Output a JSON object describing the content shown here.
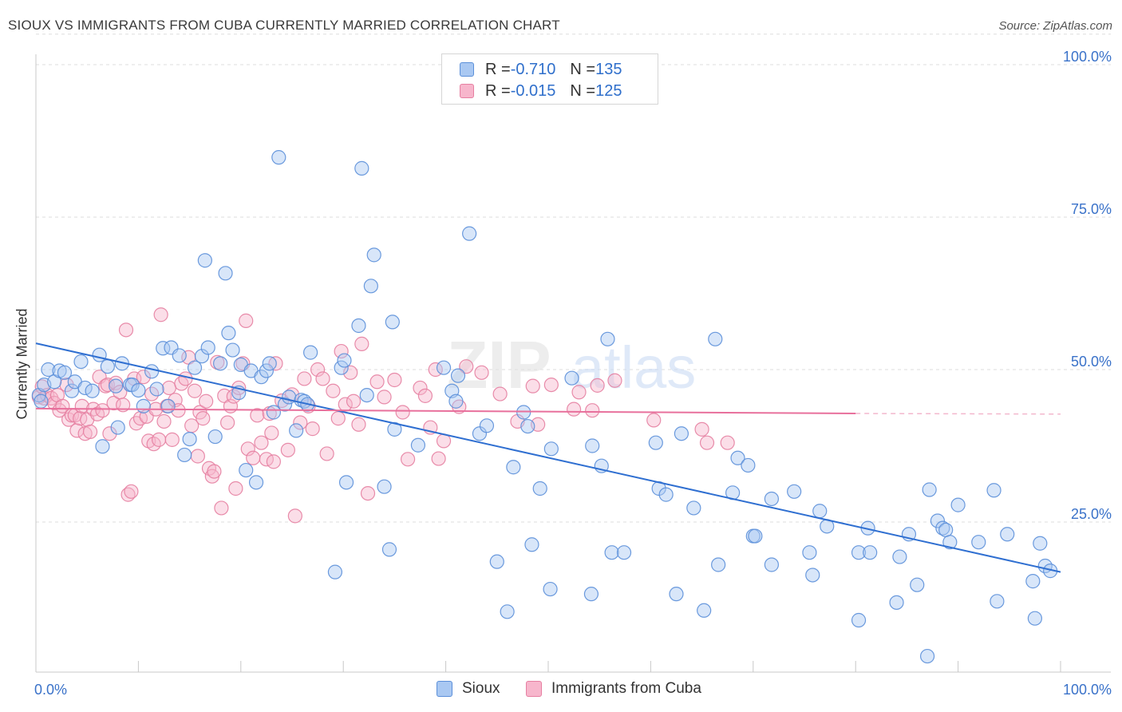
{
  "title": "SIOUX VS IMMIGRANTS FROM CUBA CURRENTLY MARRIED CORRELATION CHART",
  "source": "Source: ZipAtlas.com",
  "watermark": {
    "zip": "ZIP",
    "atlas": "atlas"
  },
  "legend_top": {
    "rows": [
      {
        "r_label": "R = ",
        "r_value": "-0.710",
        "n_label": "N = ",
        "n_value": "135"
      },
      {
        "r_label": "R = ",
        "r_value": "-0.015",
        "n_label": "N = ",
        "n_value": "125"
      }
    ]
  },
  "legend_bottom": {
    "series1": "Sioux",
    "series2": "Immigrants from Cuba"
  },
  "colors": {
    "blue_fill": "#a9c8f2",
    "blue_stroke": "#5b8fd9",
    "blue_line": "#2f6fd1",
    "pink_fill": "#f7b6cc",
    "pink_stroke": "#e67fa1",
    "pink_line": "#e8709c",
    "tick_text": "#3a72c9",
    "grid": "#dedede"
  },
  "chart_data": {
    "type": "scatter",
    "title": "SIOUX VS IMMIGRANTS FROM CUBA CURRENTLY MARRIED CORRELATION CHART",
    "xlabel": "",
    "ylabel": "Currently Married",
    "xlim": [
      0,
      100
    ],
    "ylim": [
      0,
      105
    ],
    "x_tick_labels": [
      "0.0%",
      "100.0%"
    ],
    "y_tick_labels": [
      "25.0%",
      "50.0%",
      "75.0%",
      "100.0%"
    ],
    "y_ticks": [
      25,
      50,
      75,
      100
    ],
    "grid": true,
    "legend_placement": "top-center",
    "series": [
      {
        "name": "Sioux",
        "r": -0.71,
        "n": 135,
        "trend": {
          "x": [
            0,
            100
          ],
          "y": [
            54.3,
            16.8
          ]
        },
        "points": [
          [
            0.3,
            45.8
          ],
          [
            0.5,
            44.8
          ],
          [
            0.8,
            47.5
          ],
          [
            1.2,
            50
          ],
          [
            1.8,
            48
          ],
          [
            2.3,
            49.8
          ],
          [
            2.8,
            49.5
          ],
          [
            3.5,
            46.5
          ],
          [
            3.8,
            48
          ],
          [
            4.4,
            51.3
          ],
          [
            4.8,
            47
          ],
          [
            5.5,
            46.5
          ],
          [
            6.2,
            52.4
          ],
          [
            6.5,
            37.4
          ],
          [
            7,
            50.5
          ],
          [
            7.8,
            47.3
          ],
          [
            8,
            40.5
          ],
          [
            8.4,
            51
          ],
          [
            9.2,
            47.5
          ],
          [
            9.4,
            47.5
          ],
          [
            10,
            46.6
          ],
          [
            10.5,
            44
          ],
          [
            11.3,
            49.7
          ],
          [
            11.8,
            46.8
          ],
          [
            12.4,
            53.5
          ],
          [
            12.9,
            44
          ],
          [
            13.2,
            53.6
          ],
          [
            14,
            52.3
          ],
          [
            14.5,
            36
          ],
          [
            15,
            38.6
          ],
          [
            15.5,
            50.3
          ],
          [
            16.2,
            52.2
          ],
          [
            16.5,
            67.9
          ],
          [
            16.8,
            53.6
          ],
          [
            17.5,
            39
          ],
          [
            18,
            51
          ],
          [
            18.5,
            65.8
          ],
          [
            18.8,
            56
          ],
          [
            19.2,
            53.2
          ],
          [
            19.8,
            46.2
          ],
          [
            20,
            50.8
          ],
          [
            20.5,
            33.5
          ],
          [
            21,
            49.8
          ],
          [
            21.5,
            31.5
          ],
          [
            22,
            48.8
          ],
          [
            22.5,
            49.8
          ],
          [
            22.8,
            51
          ],
          [
            23.2,
            43
          ],
          [
            23.7,
            84.8
          ],
          [
            24.3,
            44.3
          ],
          [
            24.7,
            45.5
          ],
          [
            25.4,
            40
          ],
          [
            25.9,
            45
          ],
          [
            26.2,
            44.8
          ],
          [
            26.5,
            44.3
          ],
          [
            26.8,
            52.8
          ],
          [
            29.2,
            16.8
          ],
          [
            29.8,
            50.3
          ],
          [
            30.1,
            51.5
          ],
          [
            30.3,
            31.5
          ],
          [
            31.5,
            57.2
          ],
          [
            31.8,
            83
          ],
          [
            32.3,
            45.8
          ],
          [
            32.7,
            63.7
          ],
          [
            33,
            68.8
          ],
          [
            34,
            30.8
          ],
          [
            34.5,
            20.5
          ],
          [
            34.8,
            57.8
          ],
          [
            35,
            40.2
          ],
          [
            37.3,
            37.6
          ],
          [
            39.8,
            50.3
          ],
          [
            40.6,
            46.5
          ],
          [
            41,
            44.8
          ],
          [
            41.2,
            49
          ],
          [
            42.3,
            72.3
          ],
          [
            43.3,
            39.5
          ],
          [
            44,
            40.8
          ],
          [
            45,
            18.5
          ],
          [
            46,
            10.3
          ],
          [
            46.6,
            34
          ],
          [
            47.6,
            43
          ],
          [
            48,
            40.7
          ],
          [
            48.4,
            21.3
          ],
          [
            49.2,
            30.5
          ],
          [
            50.2,
            14
          ],
          [
            50.3,
            37
          ],
          [
            52.3,
            48.6
          ],
          [
            54.2,
            13.2
          ],
          [
            54.3,
            37.5
          ],
          [
            55.2,
            34.2
          ],
          [
            55.8,
            55
          ],
          [
            56.2,
            20
          ],
          [
            57.4,
            20
          ],
          [
            60.5,
            38
          ],
          [
            60.8,
            30.5
          ],
          [
            61.5,
            29.5
          ],
          [
            62.5,
            13.2
          ],
          [
            63,
            39.5
          ],
          [
            64.2,
            27.3
          ],
          [
            65.2,
            10.5
          ],
          [
            66.3,
            55
          ],
          [
            66.6,
            18
          ],
          [
            68,
            29.8
          ],
          [
            68.5,
            35.5
          ],
          [
            69.5,
            34.3
          ],
          [
            70,
            22.7
          ],
          [
            70.2,
            22.7
          ],
          [
            71.8,
            18
          ],
          [
            71.8,
            28.8
          ],
          [
            74,
            30
          ],
          [
            75.5,
            20
          ],
          [
            75.8,
            16.3
          ],
          [
            76.5,
            26.8
          ],
          [
            77.2,
            24.3
          ],
          [
            80.3,
            8.9
          ],
          [
            80.3,
            20
          ],
          [
            81.2,
            24
          ],
          [
            81.4,
            20
          ],
          [
            84,
            11.8
          ],
          [
            84.3,
            19.3
          ],
          [
            85.2,
            23
          ],
          [
            86,
            14.7
          ],
          [
            87,
            3
          ],
          [
            87.2,
            30.3
          ],
          [
            88,
            25.2
          ],
          [
            88.5,
            24
          ],
          [
            88.8,
            23.7
          ],
          [
            89.2,
            21.7
          ],
          [
            90,
            27.8
          ],
          [
            92,
            21.7
          ],
          [
            93.5,
            30.2
          ],
          [
            93.8,
            12
          ],
          [
            94.8,
            23
          ],
          [
            97.3,
            15.3
          ],
          [
            97.5,
            9.2
          ],
          [
            98,
            21.5
          ],
          [
            98.5,
            17.8
          ],
          [
            99,
            17
          ]
        ]
      },
      {
        "name": "Immigrants from Cuba",
        "r": -0.015,
        "n": 125,
        "trend": {
          "x": [
            0,
            80
          ],
          "y": [
            43.6,
            42.8
          ]
        },
        "dashed_extension": {
          "x": [
            80,
            100
          ],
          "y": [
            42.8,
            42.7
          ]
        },
        "points": [
          [
            0.3,
            45.5
          ],
          [
            0.6,
            47.2
          ],
          [
            0.8,
            45.3
          ],
          [
            1.1,
            45.8
          ],
          [
            1.5,
            45.3
          ],
          [
            1.8,
            44.5
          ],
          [
            2.1,
            45.8
          ],
          [
            2.3,
            43.3
          ],
          [
            2.6,
            44
          ],
          [
            3,
            47.5
          ],
          [
            3.2,
            41.8
          ],
          [
            3.5,
            42.5
          ],
          [
            3.8,
            42.5
          ],
          [
            4,
            40
          ],
          [
            4.3,
            42
          ],
          [
            4.5,
            44
          ],
          [
            4.8,
            39.5
          ],
          [
            5,
            41.8
          ],
          [
            5.3,
            39.8
          ],
          [
            5.6,
            43.5
          ],
          [
            6,
            42.7
          ],
          [
            6.2,
            48.8
          ],
          [
            6.5,
            43.3
          ],
          [
            6.8,
            47.3
          ],
          [
            7,
            47.5
          ],
          [
            7.2,
            39.5
          ],
          [
            7.6,
            44.5
          ],
          [
            7.8,
            47.8
          ],
          [
            8.2,
            46.3
          ],
          [
            8.5,
            44.2
          ],
          [
            8.8,
            56.5
          ],
          [
            9,
            29.5
          ],
          [
            9.3,
            30
          ],
          [
            9.6,
            48.5
          ],
          [
            9.8,
            41.2
          ],
          [
            10.2,
            42
          ],
          [
            10.5,
            48.8
          ],
          [
            10.8,
            42.3
          ],
          [
            11,
            38.3
          ],
          [
            11.3,
            46
          ],
          [
            11.5,
            37.8
          ],
          [
            11.7,
            43.5
          ],
          [
            12,
            38.5
          ],
          [
            12.2,
            59
          ],
          [
            12.5,
            41.5
          ],
          [
            12.8,
            44
          ],
          [
            13,
            47
          ],
          [
            13.3,
            38.5
          ],
          [
            13.6,
            45
          ],
          [
            13.9,
            43.3
          ],
          [
            14.2,
            47.7
          ],
          [
            14.6,
            48.5
          ],
          [
            14.9,
            52
          ],
          [
            15.2,
            40.8
          ],
          [
            15.5,
            46.5
          ],
          [
            15.8,
            35.8
          ],
          [
            16,
            43
          ],
          [
            16.3,
            42
          ],
          [
            16.6,
            44.8
          ],
          [
            16.9,
            33.8
          ],
          [
            17.2,
            32.5
          ],
          [
            17.4,
            33.3
          ],
          [
            17.7,
            51.2
          ],
          [
            18.1,
            27.3
          ],
          [
            18.4,
            45.7
          ],
          [
            18.7,
            41.3
          ],
          [
            19,
            44
          ],
          [
            19.3,
            45.6
          ],
          [
            19.5,
            30.5
          ],
          [
            19.8,
            47
          ],
          [
            20.2,
            51
          ],
          [
            20.5,
            58
          ],
          [
            20.7,
            37
          ],
          [
            21.2,
            35.5
          ],
          [
            21.6,
            42.5
          ],
          [
            22,
            38
          ],
          [
            22.5,
            35.3
          ],
          [
            22.8,
            42.8
          ],
          [
            23,
            39.6
          ],
          [
            23.2,
            34.9
          ],
          [
            23.4,
            51
          ],
          [
            24,
            44.9
          ],
          [
            24.6,
            36.8
          ],
          [
            25,
            45.9
          ],
          [
            25.3,
            26
          ],
          [
            25.8,
            41.3
          ],
          [
            26.2,
            48.5
          ],
          [
            26.6,
            44
          ],
          [
            27,
            40.3
          ],
          [
            27.5,
            50
          ],
          [
            28,
            48.5
          ],
          [
            28.4,
            36.2
          ],
          [
            29,
            46.5
          ],
          [
            29.5,
            42
          ],
          [
            29.8,
            53
          ],
          [
            30.2,
            44.3
          ],
          [
            30.7,
            49.5
          ],
          [
            31,
            44.8
          ],
          [
            31.5,
            41
          ],
          [
            31.8,
            54.2
          ],
          [
            32.4,
            29.7
          ],
          [
            33.3,
            48
          ],
          [
            34,
            45.5
          ],
          [
            35,
            48.3
          ],
          [
            35.8,
            43
          ],
          [
            36.3,
            35.3
          ],
          [
            37.5,
            47
          ],
          [
            38,
            45.7
          ],
          [
            38.5,
            40.5
          ],
          [
            39,
            50
          ],
          [
            39.3,
            35.4
          ],
          [
            39.8,
            38.3
          ],
          [
            41.3,
            43.9
          ],
          [
            42,
            50.5
          ],
          [
            43.5,
            49.5
          ],
          [
            45.3,
            46
          ],
          [
            47,
            41.5
          ],
          [
            48.5,
            47.3
          ],
          [
            49,
            41
          ],
          [
            50.3,
            47.5
          ],
          [
            52.5,
            43.5
          ],
          [
            53,
            46.3
          ],
          [
            54.3,
            43.3
          ],
          [
            54.8,
            47.4
          ],
          [
            56.5,
            48.2
          ],
          [
            60.3,
            41.7
          ],
          [
            65,
            40.2
          ],
          [
            65.5,
            38
          ],
          [
            67.5,
            38
          ]
        ]
      }
    ]
  }
}
